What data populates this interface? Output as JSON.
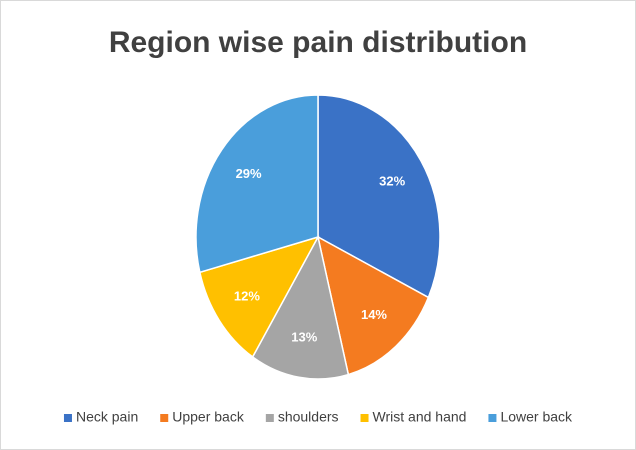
{
  "chart_data": {
    "type": "pie",
    "title": "Region wise pain distribution",
    "categories": [
      "Neck pain",
      "Upper back",
      "shoulders",
      "Wrist and hand",
      "Lower back"
    ],
    "values": [
      32,
      14,
      13,
      12,
      29
    ],
    "value_labels": [
      "32%",
      "14%",
      "13%",
      "12%",
      "29%"
    ],
    "colors": [
      "#3a72c6",
      "#f47b20",
      "#a5a5a5",
      "#ffc000",
      "#4a9edb"
    ],
    "legend": "bottom"
  }
}
